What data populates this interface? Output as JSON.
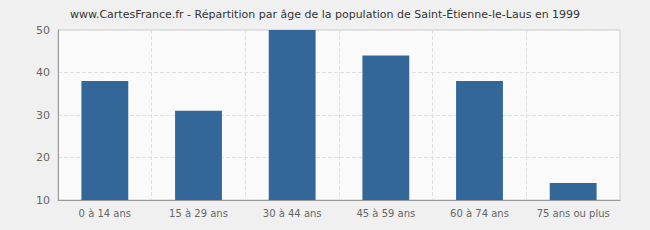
{
  "chart_data": {
    "type": "bar",
    "title": "www.CartesFrance.fr - Répartition par âge de la population de Saint-Étienne-le-Laus en 1999",
    "categories": [
      "0 à 14 ans",
      "15 à 29 ans",
      "30 à 44 ans",
      "45 à 59 ans",
      "60 à 74 ans",
      "75 ans ou plus"
    ],
    "values": [
      38,
      31,
      50,
      44,
      38,
      14
    ],
    "color": "#336699",
    "ylim": [
      10,
      50
    ],
    "yticks": [
      10,
      20,
      30,
      40,
      50
    ],
    "grid": true
  }
}
